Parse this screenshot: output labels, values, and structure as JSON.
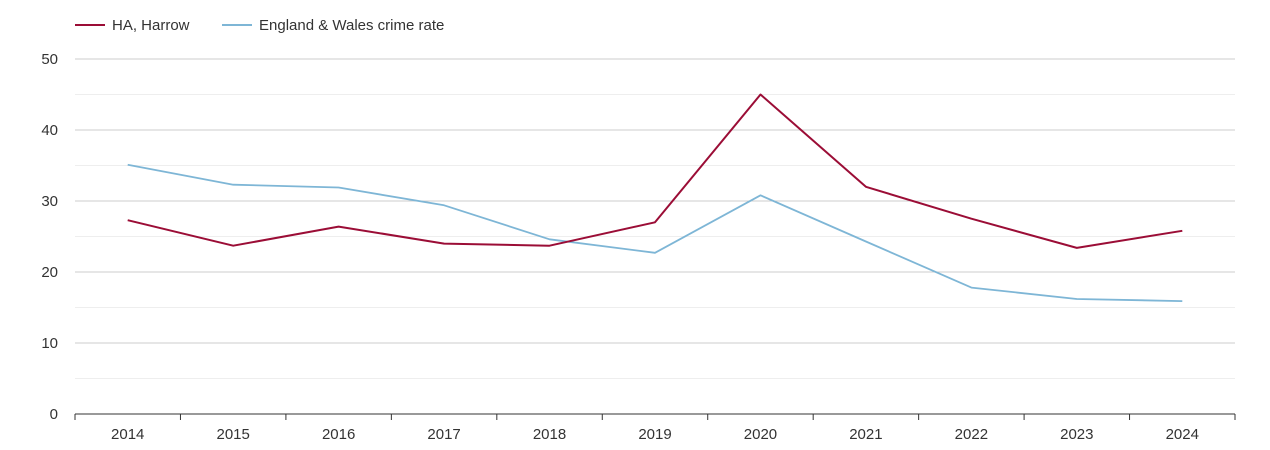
{
  "chart_data": {
    "type": "line",
    "title": "",
    "xlabel": "",
    "ylabel": "",
    "x": [
      "2014",
      "2015",
      "2016",
      "2017",
      "2018",
      "2019",
      "2020",
      "2021",
      "2022",
      "2023",
      "2024"
    ],
    "ylim": [
      0,
      50
    ],
    "yticks": [
      "0",
      "10",
      "20",
      "30",
      "40",
      "50"
    ],
    "grid": true,
    "legend_position": "top-left",
    "series": [
      {
        "name": "HA, Harrow",
        "color": "#9b0d36",
        "values": [
          27.3,
          23.7,
          26.4,
          24.0,
          23.7,
          27.0,
          45.0,
          32.0,
          27.5,
          23.4,
          25.8
        ]
      },
      {
        "name": "England & Wales crime rate",
        "color": "#7eb6d6",
        "values": [
          35.1,
          32.3,
          31.9,
          29.4,
          24.6,
          22.7,
          30.8,
          24.3,
          17.8,
          16.2,
          15.9
        ]
      }
    ]
  }
}
